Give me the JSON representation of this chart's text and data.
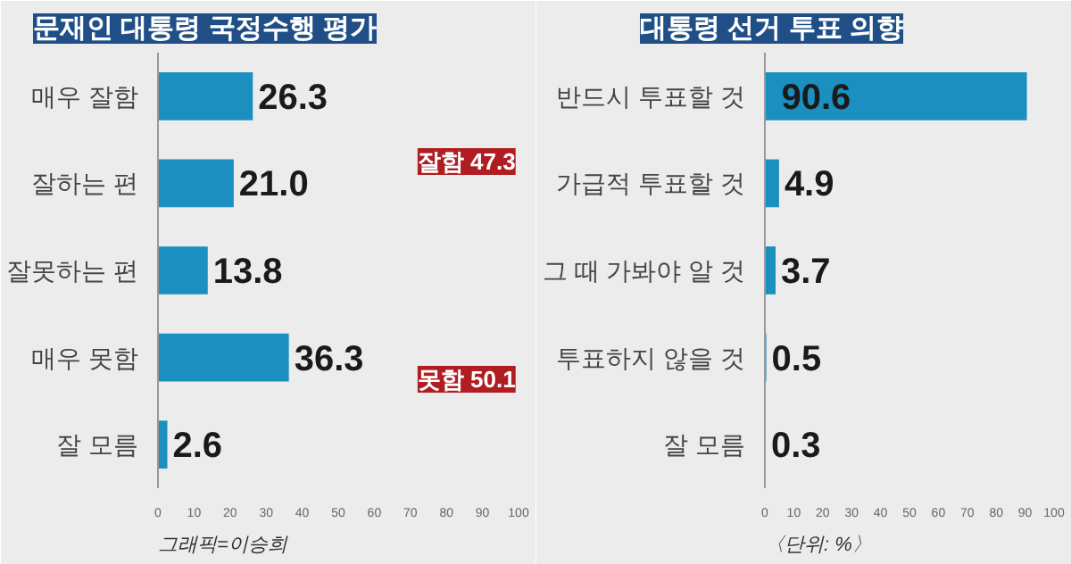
{
  "chart_data": [
    {
      "type": "bar",
      "orientation": "horizontal",
      "title": "문재인 대통령 국정수행 평가",
      "categories": [
        "매우 잘함",
        "잘하는 편",
        "잘못하는 편",
        "매우 못함",
        "잘 모름"
      ],
      "values": [
        26.3,
        21.0,
        13.8,
        36.3,
        2.6
      ],
      "value_labels": [
        "26.3",
        "21.0",
        "13.8",
        "36.3",
        "2.6"
      ],
      "color": "#1a8fc0",
      "xlim": [
        0,
        100
      ],
      "xticks": [
        0,
        10,
        20,
        30,
        40,
        50,
        60,
        70,
        80,
        90,
        100
      ],
      "grid": false,
      "annotations": [
        "잘함 47.3",
        "못함 50.1",
        "그래픽=이승희"
      ]
    },
    {
      "type": "bar",
      "orientation": "horizontal",
      "title": "대통령 선거 투표 의향",
      "categories": [
        "반드시 투표할 것",
        "가급적 투표할 것",
        "그 때 가봐야 알 것",
        "투표하지 않을 것",
        "잘 모름"
      ],
      "values": [
        90.6,
        4.9,
        3.7,
        0.5,
        0.3
      ],
      "color": "#1a8fc0",
      "xlim": [
        0,
        100
      ],
      "xticks": [
        0,
        10,
        20,
        30,
        40,
        50,
        60,
        70,
        80,
        90,
        100
      ],
      "grid": false,
      "data_labels": true,
      "annotations": [
        "〈단위: %〉"
      ]
    }
  ]
}
